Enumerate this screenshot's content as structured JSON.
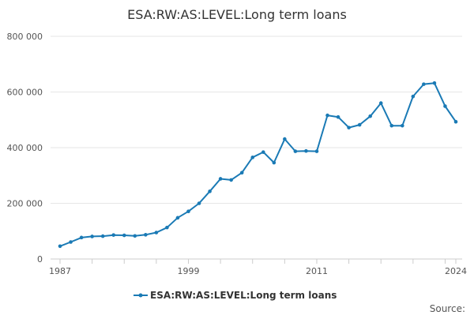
{
  "chart_data": {
    "type": "line",
    "title": "ESA:RW:AS:LEVEL:Long term loans",
    "xlabel": "",
    "ylabel": "",
    "x": [
      1987,
      1988,
      1989,
      1990,
      1991,
      1992,
      1993,
      1994,
      1995,
      1996,
      1997,
      1998,
      1999,
      2000,
      2001,
      2002,
      2003,
      2004,
      2005,
      2006,
      2007,
      2008,
      2009,
      2010,
      2011,
      2012,
      2013,
      2014,
      2015,
      2016,
      2017,
      2018,
      2019,
      2020,
      2021,
      2022,
      2023,
      2024
    ],
    "series": [
      {
        "name": "ESA:RW:AS:LEVEL:Long term loans",
        "color": "#1a7ab5",
        "values": [
          46000,
          61000,
          77000,
          81000,
          82000,
          86000,
          85000,
          83000,
          87000,
          95000,
          113000,
          148000,
          171000,
          200000,
          243000,
          288000,
          284000,
          310000,
          365000,
          384000,
          346000,
          431000,
          387000,
          388000,
          387000,
          516000,
          510000,
          472000,
          482000,
          513000,
          560000,
          479000,
          479000,
          584000,
          628000,
          632000,
          549000,
          493000
        ]
      }
    ],
    "xlim": [
      1987,
      2024
    ],
    "ylim": [
      0,
      800000
    ],
    "y_ticks": [
      0,
      200000,
      400000,
      600000,
      800000
    ],
    "y_tick_labels": [
      "0",
      "200 000",
      "400 000",
      "600 000",
      "800 000"
    ],
    "x_tick_labels": [
      "1987",
      "1999",
      "2011",
      "2024"
    ],
    "x_tick_label_years": [
      1987,
      1999,
      2011,
      2024
    ],
    "grid": "horizontal",
    "legend_position": "bottom-center",
    "source_label": "Source:"
  }
}
